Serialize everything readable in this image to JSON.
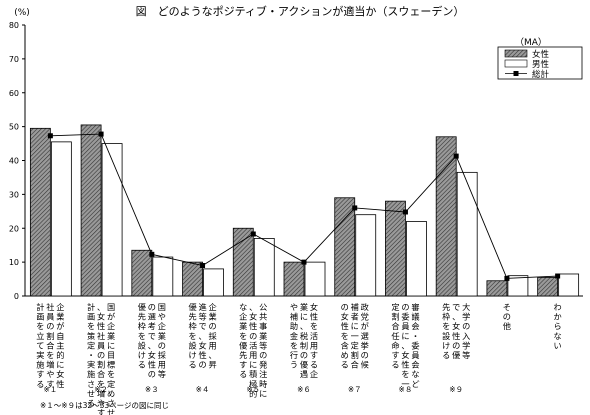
{
  "chart_data": {
    "type": "bar",
    "title": "図　どのようなポジティブ・アクションが適当か（スウェーデン）",
    "unit_label": "(%)",
    "note_ma": "（MA）",
    "ylim": [
      0,
      80
    ],
    "yticks": [
      0,
      10,
      20,
      30,
      40,
      50,
      60,
      70,
      80
    ],
    "grid": false,
    "legend_position": "top-right",
    "categories": [
      {
        "label": "企業が自主的に女性社員の割合を増やす計画を立て実施する",
        "note": "※１"
      },
      {
        "label": "国が企業に目標を定めさせ、女性社員の割合を増やす計画を策定・実施させる",
        "note": "※２"
      },
      {
        "label": "国や企業の採用等の選考で、女性の優先枠を設ける",
        "note": "※３"
      },
      {
        "label": "企業の採用、昇進等で、女性の優先枠を設ける",
        "note": "※４"
      },
      {
        "label": "公共事業等の発注時に、女性の活用に積極的な企業を優先する",
        "note": "※５"
      },
      {
        "label": "女性を活用する企業に、税制の優遇や補助金を行う",
        "note": "※６"
      },
      {
        "label": "政党が選挙の候補者に一定割合の女性を含める",
        "note": "※７"
      },
      {
        "label": "審議会・委員会などの委員に、女性を一定割合任命する",
        "note": "※８"
      },
      {
        "label": "大学の入学等で、女性の優先枠を設ける",
        "note": "※９"
      },
      {
        "label": "その他",
        "note": ""
      },
      {
        "label": "わからない",
        "note": ""
      }
    ],
    "series": [
      {
        "name": "女性",
        "type": "bar",
        "color": "#888888",
        "pattern": "hatch",
        "values": [
          49.5,
          50.5,
          13.5,
          10.0,
          20.0,
          10.0,
          29.0,
          28.0,
          47.0,
          4.5,
          5.5
        ]
      },
      {
        "name": "男性",
        "type": "bar",
        "color": "#ffffff",
        "values": [
          45.5,
          45.0,
          11.5,
          8.0,
          17.0,
          10.0,
          24.0,
          22.0,
          36.5,
          6.0,
          6.5
        ]
      },
      {
        "name": "総計",
        "type": "line",
        "color": "#000000",
        "marker": "square",
        "values": [
          47.3,
          47.8,
          12.3,
          9.0,
          18.3,
          10.0,
          26.0,
          24.8,
          41.3,
          5.2,
          5.9
        ]
      }
    ],
    "footnote": "※１～※９は32～33ページの図に同じ"
  }
}
